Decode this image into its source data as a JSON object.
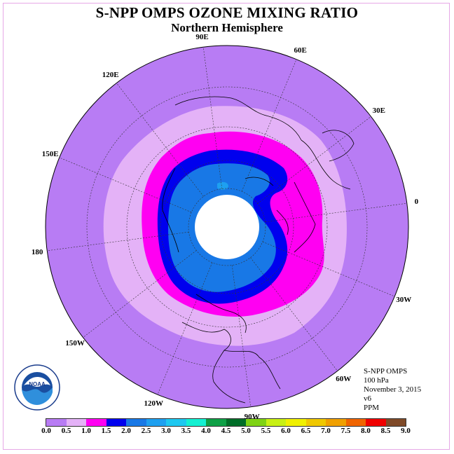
{
  "title": "S-NPP OMPS OZONE MIXING RATIO",
  "subtitle": "Northern Hemisphere",
  "longitude_labels": [
    "0",
    "30E",
    "60E",
    "90E",
    "120E",
    "150E",
    "180",
    "150W",
    "120W",
    "90W",
    "60W",
    "30W"
  ],
  "info": {
    "instrument": "S-NPP OMPS",
    "level": "100 hPa",
    "date": "November 3, 2015",
    "version": "v6",
    "units": "PPM"
  },
  "logo_text": "NOAA",
  "colorbar": {
    "ticks": [
      "0.0",
      "0.5",
      "1.0",
      "1.5",
      "2.0",
      "2.5",
      "3.0",
      "3.5",
      "4.0",
      "4.5",
      "5.0",
      "5.5",
      "6.0",
      "6.5",
      "7.0",
      "7.5",
      "8.0",
      "8.5",
      "9.0"
    ],
    "colors": [
      "#b87cf4",
      "#e4b2f7",
      "#ff00f2",
      "#0000ee",
      "#1878e6",
      "#1ea0f0",
      "#1ec8f0",
      "#14f0d2",
      "#0ea046",
      "#006e28",
      "#7fd314",
      "#c8f014",
      "#f0f000",
      "#f0c800",
      "#f0a000",
      "#f06400",
      "#f00000",
      "#7f4a28"
    ]
  }
}
